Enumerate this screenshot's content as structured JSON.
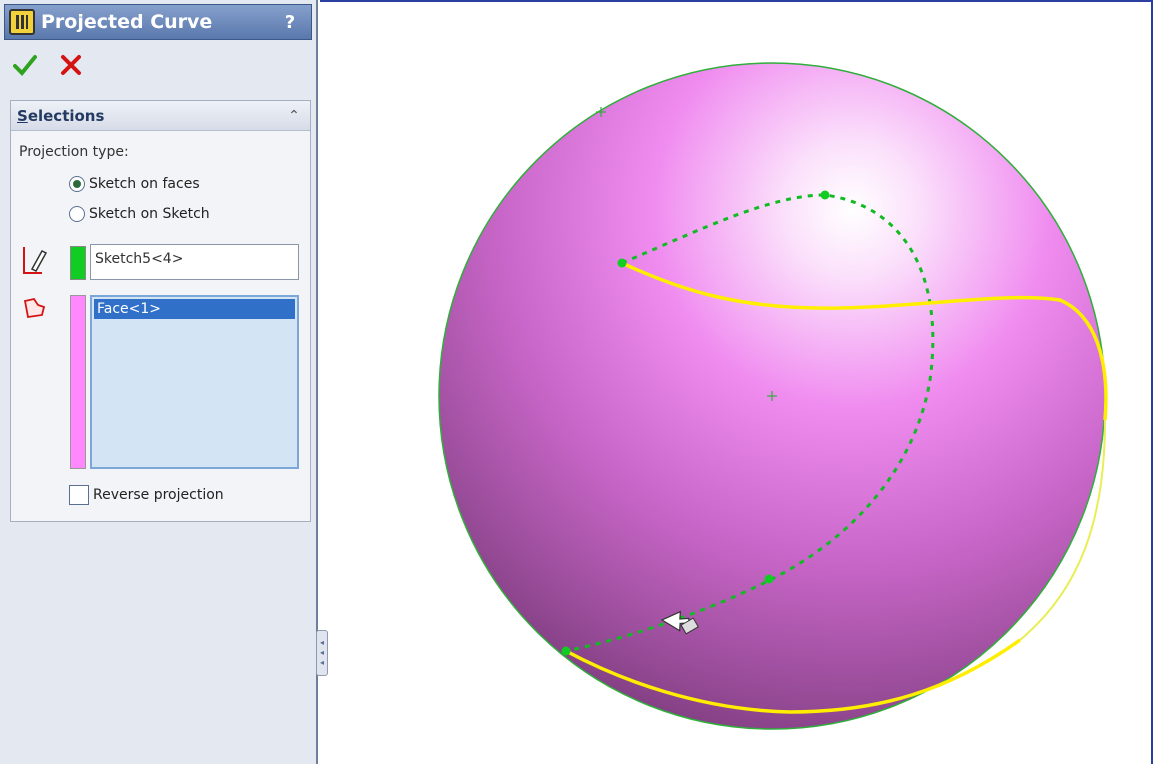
{
  "panel": {
    "title": "Projected Curve",
    "help": "?",
    "ok_icon": "check-icon",
    "cancel_icon": "x-icon"
  },
  "selections": {
    "header": "Selections",
    "projection_type_label": "Projection type:",
    "options": [
      {
        "label": "Sketch on faces",
        "selected": true
      },
      {
        "label": "Sketch on Sketch",
        "selected": false
      }
    ],
    "sketch_value": "Sketch5<4>",
    "faces": [
      "Face<1>"
    ],
    "reverse_label": "Reverse projection",
    "reverse_checked": false
  },
  "colors": {
    "sphere": "#ff7dff",
    "sketch_swatch": "#11cc22",
    "face_swatch": "#ff88ff",
    "projected_curve": "#ffee00",
    "sketch_line": "#11bb22"
  }
}
